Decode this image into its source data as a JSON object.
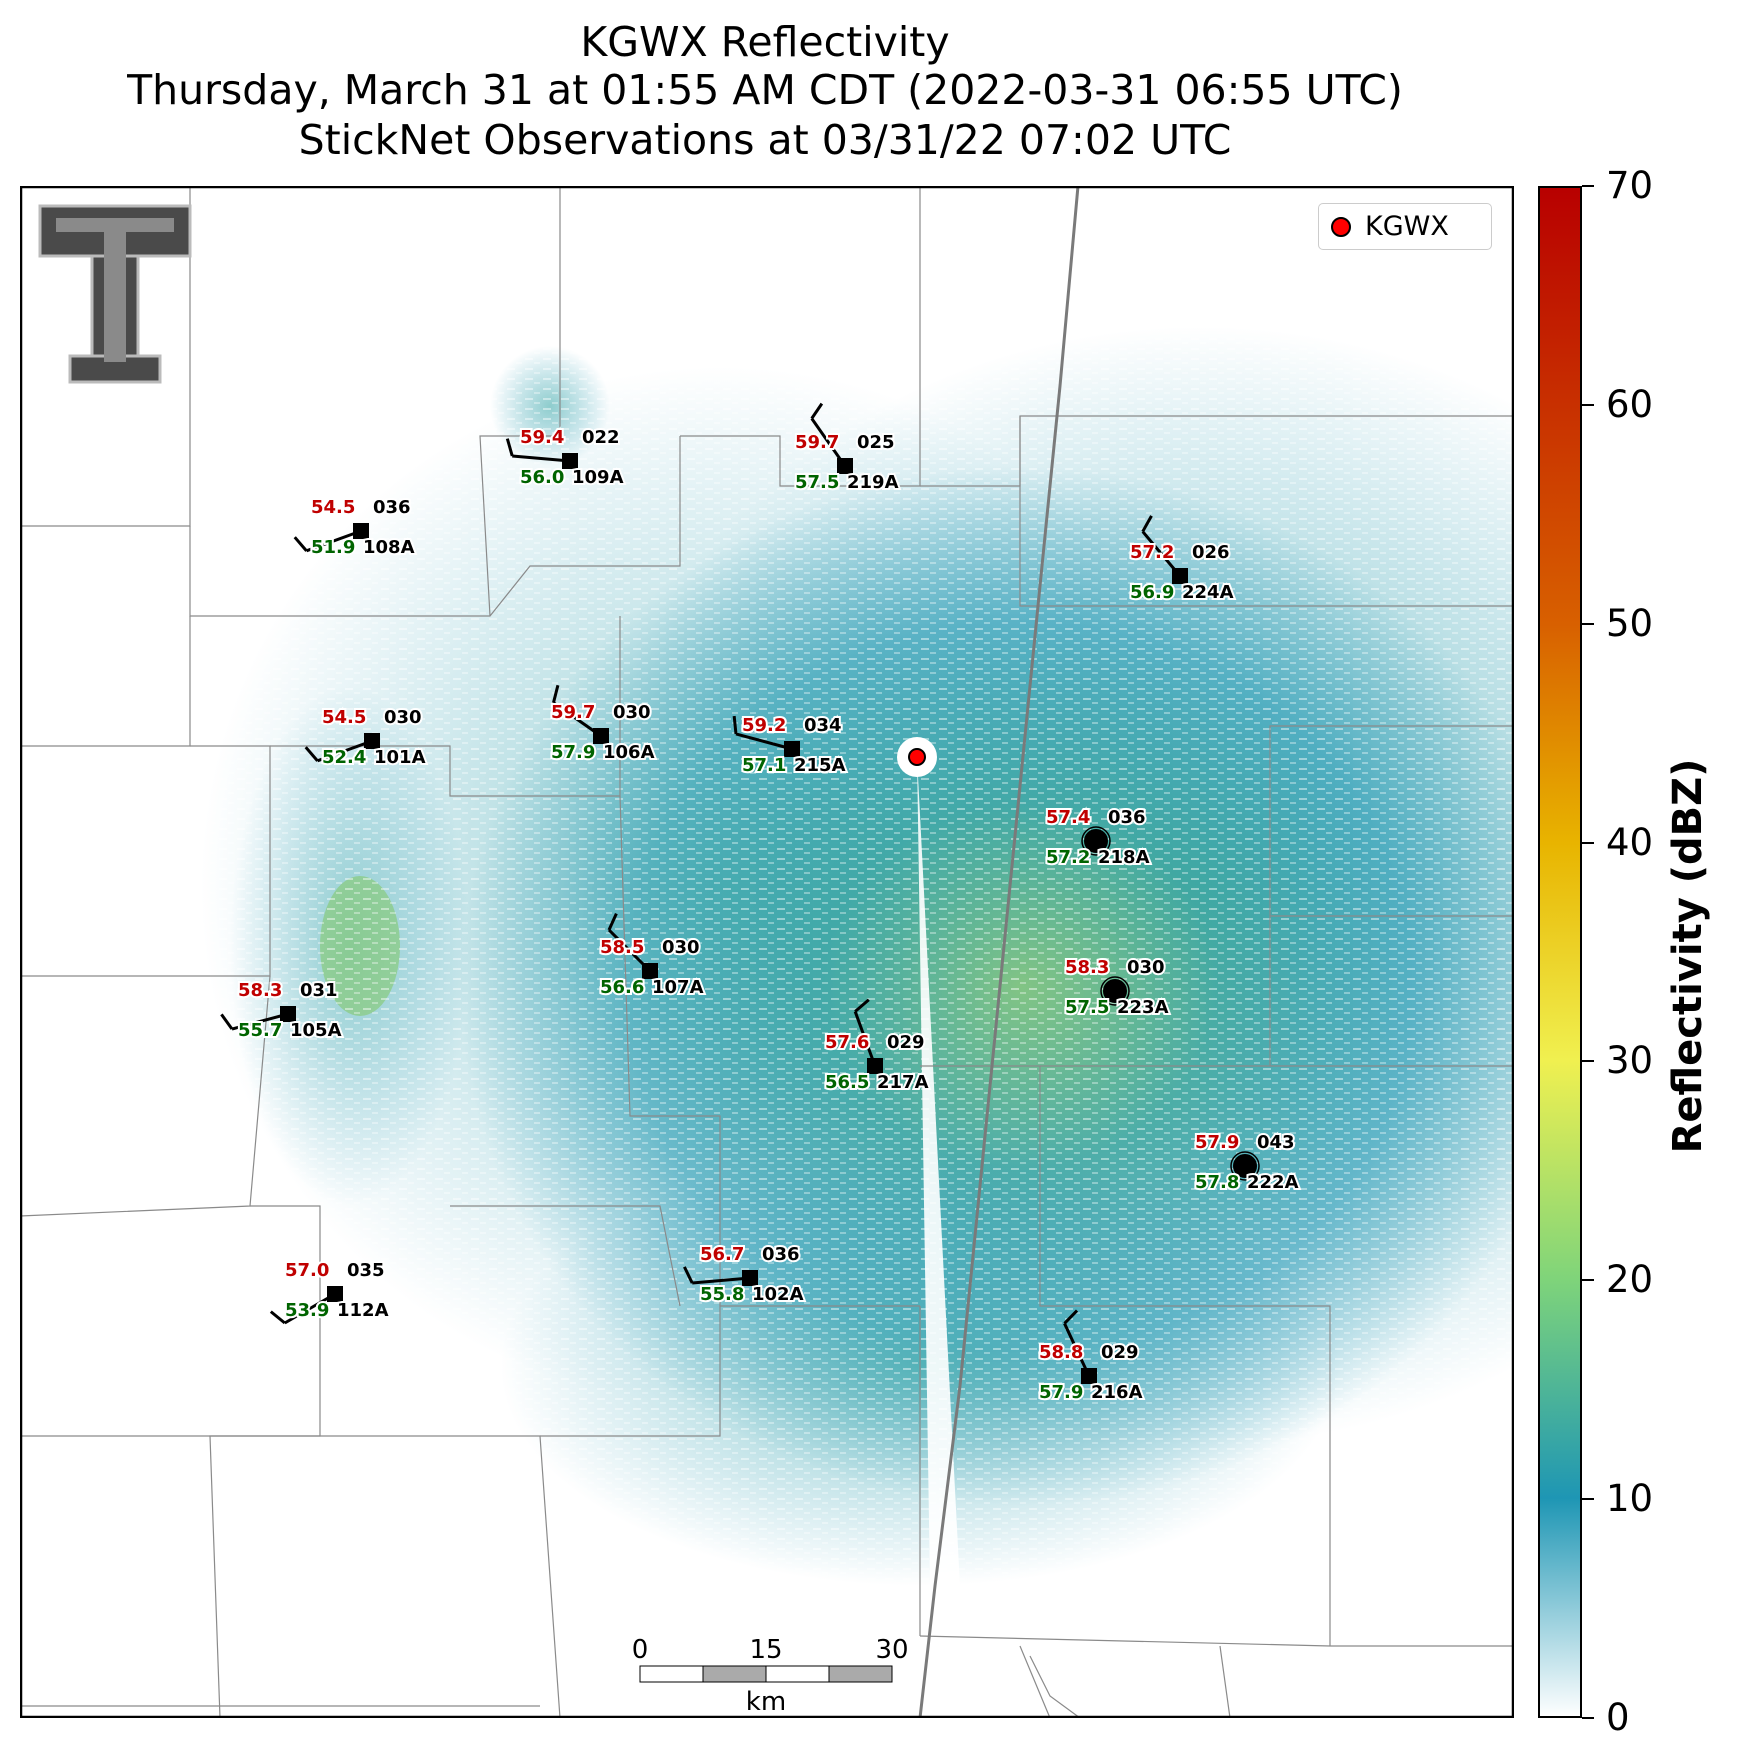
{
  "title": {
    "line1": "KGWX Reflectivity",
    "line2": "Thursday, March 31 at 01:55 AM CDT (2022-03-31 06:55 UTC)",
    "line3": "StickNet Observations at 03/31/22 07:02 UTC"
  },
  "legend": {
    "label": "KGWX",
    "marker_color": "#ff0000"
  },
  "colorbar": {
    "label": "Reflectivity (dBZ)",
    "ticks": [
      "0",
      "10",
      "20",
      "30",
      "40",
      "50",
      "60",
      "70"
    ],
    "range": [
      0,
      70
    ],
    "colors": [
      "#ffffff",
      "#1e96b4",
      "#7fd47a",
      "#f0f050",
      "#e8b400",
      "#d86000",
      "#b80000"
    ]
  },
  "scalebar": {
    "ticks": [
      "0",
      "15",
      "30"
    ],
    "unit": "km"
  },
  "logo": {
    "icon": "texas-tech-double-t-logo"
  },
  "radar": {
    "name": "KGWX",
    "icon": "radar-site-icon"
  },
  "stations": [
    {
      "id": "109A",
      "temp": "59.4",
      "dew": "56.0",
      "dir": "022",
      "marker": "square"
    },
    {
      "id": "219A",
      "temp": "59.7",
      "dew": "57.5",
      "dir": "025",
      "marker": "square"
    },
    {
      "id": "108A",
      "temp": "54.5",
      "dew": "51.9",
      "dir": "036",
      "marker": "square"
    },
    {
      "id": "224A",
      "temp": "57.2",
      "dew": "56.9",
      "dir": "026",
      "marker": "square"
    },
    {
      "id": "101A",
      "temp": "54.5",
      "dew": "52.4",
      "dir": "030",
      "marker": "square"
    },
    {
      "id": "106A",
      "temp": "59.7",
      "dew": "57.9",
      "dir": "030",
      "marker": "square"
    },
    {
      "id": "215A",
      "temp": "59.2",
      "dew": "57.1",
      "dir": "034",
      "marker": "square"
    },
    {
      "id": "218A",
      "temp": "57.4",
      "dew": "57.2",
      "dir": "036",
      "marker": "circle"
    },
    {
      "id": "107A",
      "temp": "58.5",
      "dew": "56.6",
      "dir": "030",
      "marker": "square"
    },
    {
      "id": "223A",
      "temp": "58.3",
      "dew": "57.5",
      "dir": "030",
      "marker": "circle"
    },
    {
      "id": "105A",
      "temp": "58.3",
      "dew": "55.7",
      "dir": "031",
      "marker": "square"
    },
    {
      "id": "217A",
      "temp": "57.6",
      "dew": "56.5",
      "dir": "029",
      "marker": "square"
    },
    {
      "id": "222A",
      "temp": "57.9",
      "dew": "57.8",
      "dir": "043",
      "marker": "circle"
    },
    {
      "id": "102A",
      "temp": "56.7",
      "dew": "55.8",
      "dir": "036",
      "marker": "square"
    },
    {
      "id": "112A",
      "temp": "57.0",
      "dew": "53.9",
      "dir": "035",
      "marker": "square"
    },
    {
      "id": "216A",
      "temp": "58.8",
      "dew": "57.9",
      "dir": "029",
      "marker": "square"
    }
  ]
}
